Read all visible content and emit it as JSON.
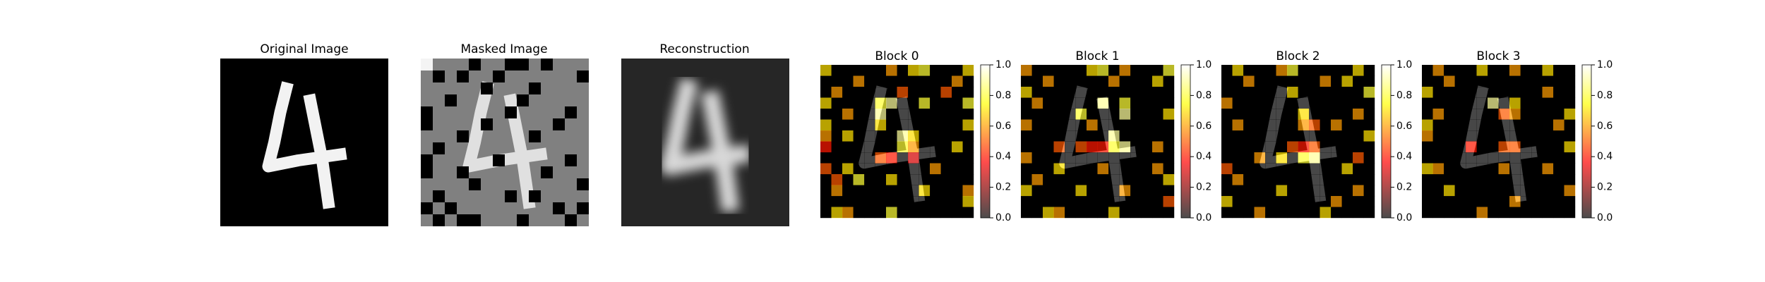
{
  "panels": [
    {
      "title": "Original Image"
    },
    {
      "title": "Masked Image"
    },
    {
      "title": "Reconstruction"
    }
  ],
  "chart_data": [
    {
      "type": "heatmap",
      "title": "Block 0",
      "colormap": "hot",
      "clim": [
        0,
        1
      ],
      "cticks": [
        {
          "value": 0,
          "label": "0.0"
        },
        {
          "value": 0.2,
          "label": "0.2"
        },
        {
          "value": 0.4,
          "label": "0.4"
        },
        {
          "value": 0.6,
          "label": "0.6"
        },
        {
          "value": 0.8,
          "label": "0.8"
        },
        {
          "value": 1,
          "label": "1.0"
        }
      ],
      "values": [
        [
          0.7,
          0,
          0,
          0,
          0,
          0,
          0.6,
          0,
          0.7,
          0.8,
          0,
          0,
          0,
          0.7
        ],
        [
          0,
          0,
          0,
          0.6,
          0,
          0,
          0,
          0,
          0,
          0,
          0,
          0,
          0.6,
          0
        ],
        [
          0,
          0.6,
          0,
          0,
          0,
          0,
          0,
          0.5,
          0,
          0,
          0,
          0.5,
          0,
          0
        ],
        [
          0.7,
          0,
          0,
          0,
          0,
          0.8,
          0.9,
          0,
          0,
          0.8,
          0,
          0,
          0,
          0.8
        ],
        [
          0,
          0,
          0.6,
          0,
          0,
          0.9,
          0,
          0,
          0,
          0,
          0,
          0,
          0,
          0
        ],
        [
          0.7,
          0,
          0,
          0,
          0,
          0.7,
          0,
          0,
          0,
          0,
          0,
          0,
          0,
          0.7
        ],
        [
          0.6,
          0,
          0.7,
          0,
          0,
          0,
          0,
          0.9,
          0.7,
          0,
          0,
          0,
          0,
          0
        ],
        [
          0.4,
          0,
          0,
          0,
          0,
          0,
          0,
          0.8,
          0.6,
          0,
          0,
          0,
          0.7,
          0
        ],
        [
          0,
          0,
          0,
          0,
          0,
          0.5,
          0.4,
          0,
          0.3,
          0,
          0,
          0,
          0,
          0
        ],
        [
          0.5,
          0,
          0.7,
          0,
          0,
          0,
          0,
          0,
          0,
          0,
          0.6,
          0,
          0,
          0
        ],
        [
          0,
          0.5,
          0,
          0.8,
          0,
          0,
          0.7,
          0,
          0,
          0,
          0,
          0,
          0,
          0
        ],
        [
          0,
          0.6,
          0,
          0,
          0,
          0,
          0,
          0,
          0,
          0.7,
          0,
          0,
          0,
          0.6
        ],
        [
          0,
          0,
          0,
          0,
          0,
          0,
          0,
          0,
          0,
          0,
          0,
          0,
          0,
          0.7
        ],
        [
          0,
          0.7,
          0.6,
          0,
          0,
          0,
          0.8,
          0,
          0,
          0,
          0,
          0,
          0,
          0
        ]
      ]
    },
    {
      "type": "heatmap",
      "title": "Block 1",
      "colormap": "hot",
      "clim": [
        0,
        1
      ],
      "cticks": [
        {
          "value": 0,
          "label": "0.0"
        },
        {
          "value": 0.2,
          "label": "0.2"
        },
        {
          "value": 0.4,
          "label": "0.4"
        },
        {
          "value": 0.6,
          "label": "0.6"
        },
        {
          "value": 0.8,
          "label": "0.8"
        },
        {
          "value": 1,
          "label": "1.0"
        }
      ],
      "values": [
        [
          0.6,
          0,
          0,
          0,
          0,
          0,
          0.7,
          0.8,
          0,
          0.6,
          0,
          0,
          0,
          0.8
        ],
        [
          0,
          0,
          0.6,
          0,
          0,
          0,
          0,
          0,
          0.6,
          0,
          0,
          0,
          0.7,
          0
        ],
        [
          0.7,
          0,
          0,
          0,
          0,
          0,
          0,
          0,
          0,
          0,
          0,
          0,
          0,
          0
        ],
        [
          0,
          0.6,
          0,
          0,
          0,
          0,
          0,
          0.9,
          0,
          0.8,
          0,
          0,
          0,
          0
        ],
        [
          0,
          0,
          0,
          0,
          0,
          0.8,
          0,
          0,
          0,
          0.9,
          0,
          0,
          0,
          0.7
        ],
        [
          0.6,
          0,
          0,
          0,
          0,
          0,
          0.6,
          0,
          0,
          0,
          0,
          0,
          0,
          0
        ],
        [
          0,
          0,
          0,
          0,
          0,
          0,
          0,
          0,
          0.9,
          0,
          0,
          0,
          0,
          0
        ],
        [
          0,
          0,
          0,
          0.5,
          0,
          0.5,
          0.4,
          0.4,
          0.8,
          0.9,
          0,
          0,
          0.6,
          0
        ],
        [
          0.6,
          0,
          0,
          0,
          0,
          0,
          0,
          0,
          0,
          0,
          0,
          0,
          0,
          0
        ],
        [
          0,
          0,
          0,
          0.7,
          0,
          0,
          0,
          0.6,
          0,
          0,
          0,
          0,
          0.6,
          0
        ],
        [
          0,
          0.6,
          0,
          0,
          0,
          0,
          0,
          0,
          0,
          0,
          0,
          0,
          0,
          0.7
        ],
        [
          0.7,
          0,
          0,
          0,
          0,
          0.7,
          0,
          0,
          0,
          0.6,
          0,
          0,
          0,
          0
        ],
        [
          0,
          0,
          0,
          0,
          0,
          0,
          0,
          0,
          0,
          0,
          0,
          0,
          0,
          0.5
        ],
        [
          0,
          0,
          0.7,
          0.6,
          0,
          0,
          0,
          0,
          0.7,
          0,
          0,
          0,
          0,
          0
        ]
      ]
    },
    {
      "type": "heatmap",
      "title": "Block 2",
      "colormap": "hot",
      "clim": [
        0,
        1
      ],
      "cticks": [
        {
          "value": 0,
          "label": "0.0"
        },
        {
          "value": 0.2,
          "label": "0.2"
        },
        {
          "value": 0.4,
          "label": "0.4"
        },
        {
          "value": 0.6,
          "label": "0.6"
        },
        {
          "value": 0.8,
          "label": "0.8"
        },
        {
          "value": 1,
          "label": "1.0"
        }
      ],
      "values": [
        [
          0,
          0.7,
          0,
          0,
          0,
          0.6,
          0.8,
          0,
          0,
          0,
          0,
          0,
          0.7,
          0
        ],
        [
          0,
          0,
          0.6,
          0,
          0,
          0,
          0,
          0,
          0,
          0.6,
          0,
          0.7,
          0,
          0
        ],
        [
          0,
          0,
          0,
          0,
          0,
          0,
          0.7,
          0,
          0,
          0,
          0,
          0,
          0,
          0.8
        ],
        [
          0.6,
          0,
          0,
          0,
          0,
          0,
          0,
          0,
          0,
          0,
          0,
          0,
          0,
          0
        ],
        [
          0,
          0,
          0,
          0,
          0,
          0,
          0,
          0.7,
          0,
          0,
          0,
          0,
          0.6,
          0
        ],
        [
          0,
          0.6,
          0,
          0,
          0,
          0,
          0,
          0.6,
          0.5,
          0,
          0.6,
          0,
          0,
          0
        ],
        [
          0,
          0,
          0,
          0,
          0,
          0,
          0,
          0,
          0,
          0,
          0,
          0,
          0,
          0.7
        ],
        [
          0,
          0,
          0,
          0,
          0,
          0,
          0.5,
          0.4,
          0.5,
          0,
          0,
          0,
          0,
          0
        ],
        [
          0,
          0,
          0,
          0.6,
          0,
          0.7,
          0,
          0.8,
          0.9,
          0,
          0,
          0,
          0.5,
          0
        ],
        [
          0.5,
          0,
          0,
          0,
          0,
          0,
          0,
          0,
          0,
          0,
          0,
          0.7,
          0,
          0
        ],
        [
          0,
          0.6,
          0,
          0,
          0,
          0,
          0,
          0,
          0,
          0,
          0,
          0,
          0,
          0
        ],
        [
          0,
          0,
          0,
          0,
          0,
          0.7,
          0,
          0,
          0,
          0,
          0,
          0,
          0.6,
          0
        ],
        [
          0.7,
          0,
          0,
          0,
          0,
          0,
          0,
          0,
          0,
          0,
          0.6,
          0,
          0,
          0
        ],
        [
          0,
          0,
          0,
          0.6,
          0,
          0,
          0,
          0,
          0,
          0.7,
          0,
          0,
          0,
          0
        ]
      ]
    },
    {
      "type": "heatmap",
      "title": "Block 3",
      "colormap": "hot",
      "clim": [
        0,
        1
      ],
      "cticks": [
        {
          "value": 0,
          "label": "0.0"
        },
        {
          "value": 0.2,
          "label": "0.2"
        },
        {
          "value": 0.4,
          "label": "0.4"
        },
        {
          "value": 0.6,
          "label": "0.6"
        },
        {
          "value": 0.8,
          "label": "0.8"
        },
        {
          "value": 1,
          "label": "1.0"
        }
      ],
      "values": [
        [
          0,
          0.6,
          0,
          0,
          0,
          0.7,
          0,
          0,
          0.6,
          0,
          0,
          0.7,
          0,
          0
        ],
        [
          0,
          0,
          0.6,
          0,
          0,
          0,
          0,
          0,
          0,
          0,
          0,
          0,
          0,
          0
        ],
        [
          0.7,
          0,
          0,
          0,
          0,
          0,
          0,
          0,
          0,
          0,
          0,
          0.6,
          0,
          0
        ],
        [
          0,
          0,
          0,
          0,
          0,
          0,
          0.9,
          0,
          0.7,
          0,
          0,
          0,
          0,
          0
        ],
        [
          0,
          0.6,
          0,
          0,
          0,
          0,
          0,
          0.5,
          0.6,
          0,
          0,
          0,
          0,
          0.7
        ],
        [
          0.7,
          0,
          0,
          0,
          0,
          0,
          0,
          0,
          0,
          0,
          0,
          0,
          0.6,
          0
        ],
        [
          0.6,
          0,
          0,
          0,
          0,
          0,
          0,
          0,
          0,
          0,
          0,
          0,
          0,
          0
        ],
        [
          0,
          0,
          0,
          0,
          0.4,
          0,
          0,
          0.5,
          0.5,
          0,
          0,
          0,
          0,
          0.7
        ],
        [
          0,
          0,
          0,
          0,
          0,
          0,
          0,
          0,
          0,
          0,
          0,
          0,
          0,
          0
        ],
        [
          0.7,
          0.6,
          0,
          0,
          0,
          0,
          0,
          0.6,
          0,
          0,
          0,
          0.6,
          0,
          0
        ],
        [
          0,
          0,
          0,
          0,
          0,
          0,
          0,
          0,
          0,
          0,
          0,
          0,
          0,
          0
        ],
        [
          0,
          0,
          0.7,
          0,
          0,
          0,
          0,
          0,
          0,
          0,
          0,
          0,
          0,
          0.6
        ],
        [
          0,
          0,
          0,
          0,
          0,
          0,
          0,
          0,
          0.6,
          0,
          0,
          0,
          0,
          0
        ],
        [
          0,
          0,
          0,
          0,
          0,
          0.6,
          0,
          0,
          0,
          0,
          0,
          0,
          0,
          0
        ]
      ]
    }
  ]
}
